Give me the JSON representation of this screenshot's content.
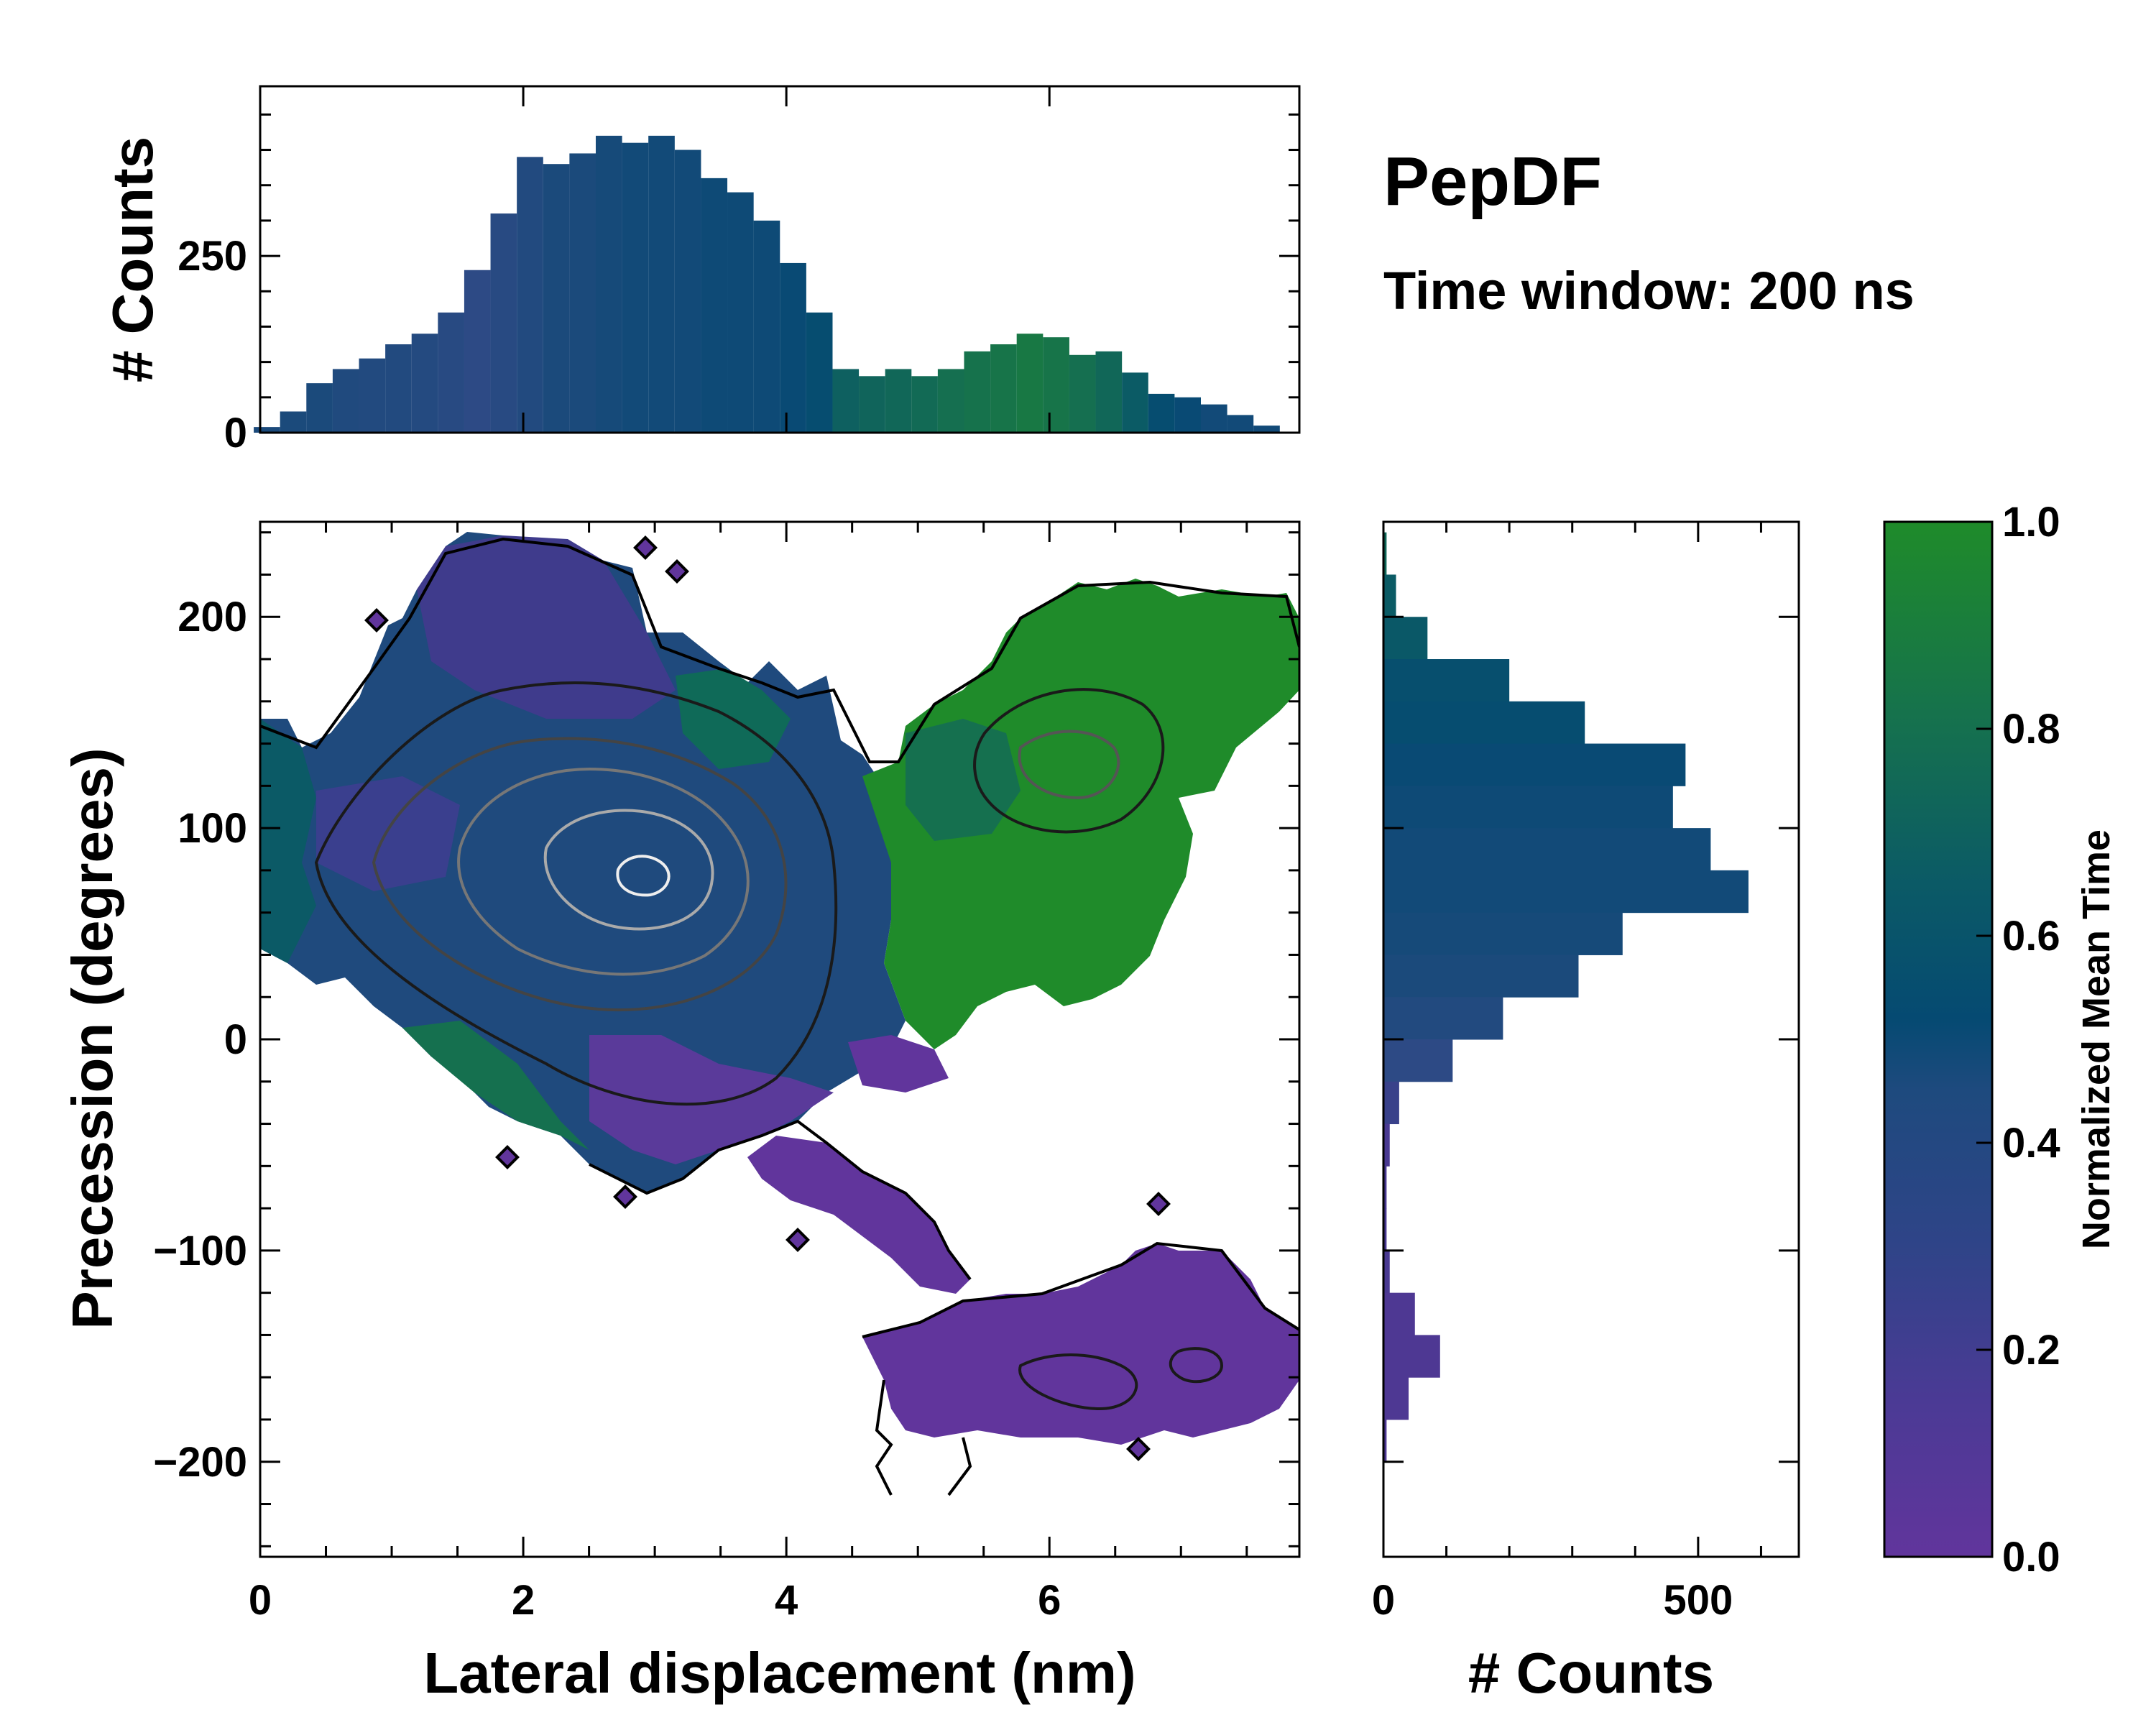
{
  "title": "PepDF",
  "subtitle": "Time window: 200 ns",
  "chart_data": [
    {
      "panel": "main",
      "type": "heatmap",
      "xlabel": "Lateral displacement (nm)",
      "ylabel": "Precession (degrees)",
      "xlim": [
        0,
        7.9
      ],
      "ylim": [
        -245,
        245
      ],
      "xticks": [
        0,
        2,
        4,
        6
      ],
      "xtick_labels": [
        "0",
        "2",
        "4",
        "6"
      ],
      "yticks": [
        -200,
        -100,
        0,
        100,
        200
      ],
      "ytick_labels": [
        "−200",
        "−100",
        "0",
        "100",
        "200"
      ],
      "colormap": [
        "#61359c",
        "#3f3b8c",
        "#2f4a86",
        "#1f4a7d",
        "#054a72",
        "#0b5a66",
        "#15704f",
        "#1f8b2a"
      ],
      "contour_levels": 5,
      "regions": [
        {
          "name": "upper-left-cluster",
          "x_range": [
            0,
            4.6
          ],
          "y_range": [
            -70,
            235
          ],
          "mean_time": "0.2-0.7"
        },
        {
          "name": "upper-right-cluster",
          "x_range": [
            4.6,
            7.9
          ],
          "y_range": [
            20,
            215
          ],
          "mean_time": "0.85-1.0"
        },
        {
          "name": "lower-cluster",
          "x_range": [
            4.5,
            7.9
          ],
          "y_range": [
            -200,
            -120
          ],
          "mean_time": "0.05-0.15"
        }
      ]
    },
    {
      "panel": "top-histogram",
      "type": "bar",
      "xlabel": "",
      "ylabel": "# Counts",
      "xlim": [
        0,
        7.9
      ],
      "ylim": [
        0,
        490
      ],
      "yticks": [
        0,
        250
      ],
      "ytick_labels": [
        "0",
        "250"
      ],
      "bin_centers": [
        0.05,
        0.25,
        0.45,
        0.65,
        0.85,
        1.05,
        1.25,
        1.45,
        1.65,
        1.85,
        2.05,
        2.25,
        2.45,
        2.65,
        2.85,
        3.05,
        3.25,
        3.45,
        3.65,
        3.85,
        4.05,
        4.25,
        4.45,
        4.65,
        4.85,
        5.05,
        5.25,
        5.45,
        5.65,
        5.85,
        6.05,
        6.25,
        6.45,
        6.65,
        6.85,
        7.05,
        7.25,
        7.45,
        7.65,
        7.85
      ],
      "values": [
        8,
        30,
        70,
        90,
        105,
        125,
        140,
        170,
        230,
        310,
        390,
        380,
        395,
        420,
        410,
        420,
        400,
        360,
        340,
        300,
        240,
        170,
        90,
        80,
        90,
        80,
        90,
        115,
        125,
        140,
        135,
        110,
        115,
        85,
        55,
        50,
        40,
        25,
        10,
        0
      ],
      "mean_time": [
        0.45,
        0.45,
        0.45,
        0.42,
        0.4,
        0.4,
        0.38,
        0.35,
        0.3,
        0.35,
        0.4,
        0.45,
        0.45,
        0.48,
        0.5,
        0.5,
        0.5,
        0.52,
        0.52,
        0.52,
        0.55,
        0.6,
        0.75,
        0.78,
        0.8,
        0.82,
        0.85,
        0.87,
        0.88,
        0.9,
        0.88,
        0.85,
        0.8,
        0.72,
        0.6,
        0.55,
        0.5,
        0.5,
        0.5,
        0.5
      ]
    },
    {
      "panel": "right-histogram",
      "type": "bar",
      "orientation": "horizontal",
      "xlabel": "# Counts",
      "ylabel": "",
      "xlim": [
        0,
        660
      ],
      "ylim": [
        -245,
        245
      ],
      "xticks": [
        0,
        500
      ],
      "xtick_labels": [
        "0",
        "500"
      ],
      "bin_centers": [
        230,
        210,
        190,
        170,
        150,
        130,
        110,
        90,
        70,
        50,
        30,
        10,
        -10,
        -30,
        -50,
        -70,
        -90,
        -110,
        -130,
        -150,
        -170,
        -190
      ],
      "values": [
        5,
        20,
        70,
        200,
        320,
        480,
        460,
        520,
        580,
        380,
        310,
        190,
        110,
        25,
        10,
        5,
        5,
        10,
        50,
        90,
        40,
        5
      ],
      "mean_time": [
        0.8,
        0.72,
        0.7,
        0.62,
        0.6,
        0.55,
        0.52,
        0.5,
        0.5,
        0.48,
        0.45,
        0.4,
        0.3,
        0.2,
        0.1,
        0.1,
        0.1,
        0.1,
        0.08,
        0.08,
        0.08,
        0.08
      ]
    },
    {
      "panel": "colorbar",
      "type": "colorbar",
      "label": "Normalized Mean Time",
      "ticks": [
        0.0,
        0.2,
        0.4,
        0.6,
        0.8,
        1.0
      ],
      "tick_labels": [
        "0.0",
        "0.2",
        "0.4",
        "0.6",
        "0.8",
        "1.0"
      ]
    }
  ]
}
